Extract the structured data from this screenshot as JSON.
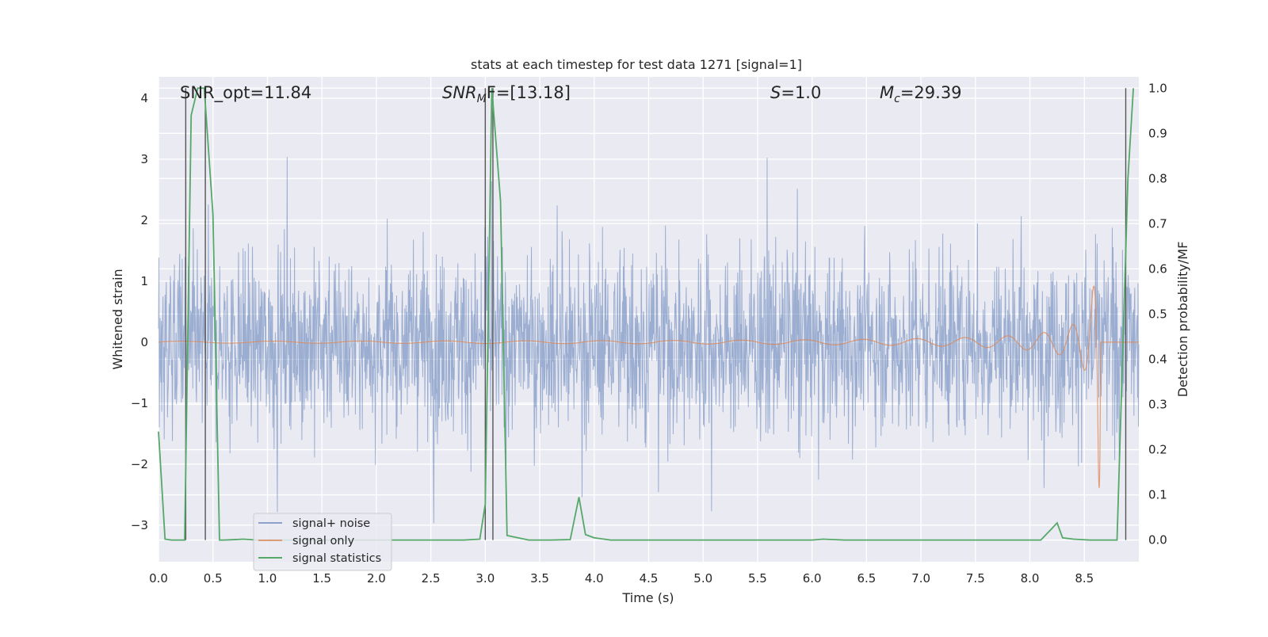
{
  "chart_data": {
    "type": "line",
    "title": "stats at each timestep for test data 1271 [signal=1]",
    "xlabel": "Time (s)",
    "ylabel": "Whitened strain",
    "y2label": "Detection probability/MF",
    "xlim": [
      0,
      9.0
    ],
    "ylim": [
      -3.6,
      4.35
    ],
    "y2lim": [
      -0.048,
      1.025
    ],
    "x_ticks": [
      "0.0",
      "0.5",
      "1.0",
      "1.5",
      "2.0",
      "2.5",
      "3.0",
      "3.5",
      "4.0",
      "4.5",
      "5.0",
      "5.5",
      "6.0",
      "6.5",
      "7.0",
      "7.5",
      "8.0",
      "8.5"
    ],
    "y_ticks": [
      "−3",
      "−2",
      "−1",
      "0",
      "1",
      "2",
      "3",
      "4"
    ],
    "y2_ticks": [
      "0.0",
      "0.1",
      "0.2",
      "0.3",
      "0.4",
      "0.5",
      "0.6",
      "0.7",
      "0.8",
      "0.9",
      "1.0"
    ],
    "legend_position": "lower-left",
    "legend": [
      "signal+ noise",
      "signal only",
      "signal statistics"
    ],
    "colors": {
      "signal_noise": "#4c72b0",
      "signal_only": "#dd8452",
      "statistics": "#55a868",
      "vlines": "#555555",
      "axes_bg": "#eaeaf2",
      "grid": "#ffffff"
    },
    "annotations": {
      "snr_opt": "SNR_opt=11.84",
      "snr_mf_main": "SNR",
      "snr_mf_sub": "M",
      "snr_mf_rest": "F=[13.18]",
      "s_var": "S",
      "s_rest": "=1.0",
      "mc_var": "M",
      "mc_sub": "c",
      "mc_rest": "=29.39"
    },
    "series": [
      {
        "name": "signal statistics",
        "axis": "right",
        "x": [
          0.0,
          0.06,
          0.12,
          0.18,
          0.24,
          0.3,
          0.36,
          0.42,
          0.5,
          0.56,
          0.6,
          0.7,
          0.78,
          0.9,
          1.2,
          1.6,
          2.0,
          2.4,
          2.8,
          2.95,
          3.0,
          3.06,
          3.14,
          3.2,
          3.3,
          3.4,
          3.6,
          3.78,
          3.86,
          3.92,
          4.0,
          4.15,
          4.6,
          5.0,
          5.6,
          6.0,
          6.1,
          6.3,
          7.0,
          7.6,
          8.1,
          8.2,
          8.25,
          8.3,
          8.4,
          8.55,
          8.7,
          8.8,
          8.9,
          8.95
        ],
        "y": [
          0.24,
          0.002,
          0.0,
          0.0,
          0.0,
          0.94,
          1.0,
          1.0,
          0.72,
          0.0,
          0.0,
          0.001,
          0.002,
          0.0,
          0.0,
          0.0,
          0.0,
          0.0,
          0.0,
          0.002,
          0.08,
          1.0,
          0.75,
          0.01,
          0.005,
          0.0,
          0.0,
          0.001,
          0.095,
          0.012,
          0.005,
          0.0,
          0.0,
          0.0,
          0.0,
          0.0,
          0.002,
          0.0,
          0.0,
          0.0,
          0.0,
          0.025,
          0.038,
          0.005,
          0.002,
          0.0,
          0.0,
          0.0,
          0.8,
          1.0
        ]
      },
      {
        "name": "signal only",
        "axis": "left",
        "description": "chirp waveform, near-zero until ~4.5 s, amplitude grows to ~2.4 before merger at ~8.65 s"
      },
      {
        "name": "signal+ noise",
        "axis": "left",
        "description": "whitened noise roughly between -2.5 and 2.5 with peaks up to ~3.3"
      }
    ],
    "vertical_lines_x": [
      0.25,
      0.43,
      3.0,
      3.07,
      8.88
    ]
  }
}
